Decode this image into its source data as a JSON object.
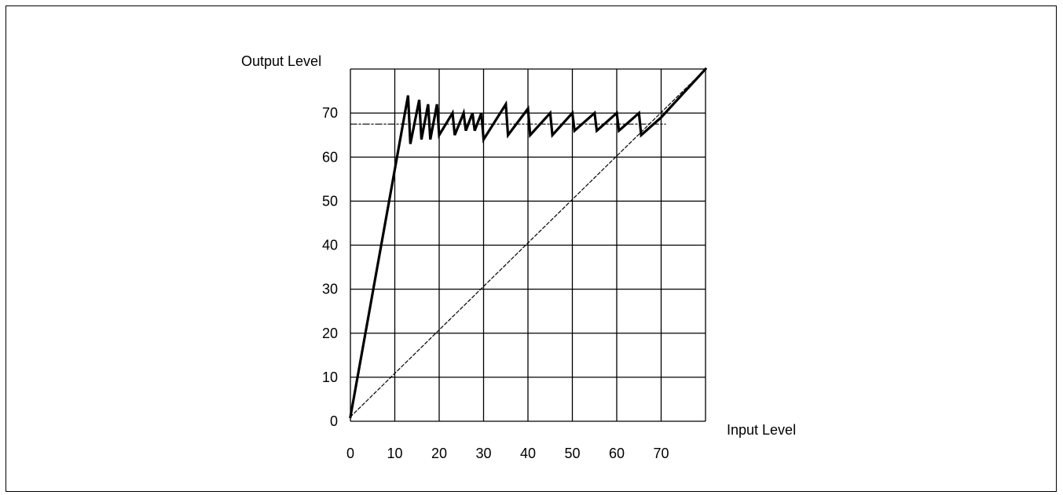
{
  "chart_data": {
    "type": "line",
    "xlabel": "Input Level",
    "ylabel": "Output Level",
    "xlim": [
      0,
      80
    ],
    "ylim": [
      0,
      80
    ],
    "x_ticks": [
      0,
      10,
      20,
      30,
      40,
      50,
      60,
      70
    ],
    "y_ticks": [
      0,
      10,
      20,
      30,
      40,
      50,
      60,
      70
    ],
    "grid": true,
    "line_color": "#000000",
    "series": [
      {
        "style": "solid-thick",
        "points": [
          [
            0,
            1
          ],
          [
            13,
            74
          ],
          [
            13.5,
            63
          ],
          [
            15.5,
            73
          ],
          [
            16,
            64
          ],
          [
            17.5,
            72
          ],
          [
            18,
            64
          ],
          [
            19.5,
            72
          ],
          [
            20,
            65
          ],
          [
            23,
            70
          ],
          [
            23.5,
            65
          ],
          [
            25.5,
            70
          ],
          [
            26,
            66
          ],
          [
            27.5,
            70
          ],
          [
            28,
            66
          ],
          [
            29.5,
            70
          ],
          [
            30,
            64
          ],
          [
            35,
            72
          ],
          [
            35.5,
            65
          ],
          [
            40,
            71
          ],
          [
            40.5,
            65
          ],
          [
            45,
            70
          ],
          [
            45.5,
            65
          ],
          [
            50,
            70
          ],
          [
            50.5,
            66
          ],
          [
            55,
            70
          ],
          [
            55.5,
            66
          ],
          [
            60,
            70
          ],
          [
            60.5,
            66
          ],
          [
            65,
            70
          ],
          [
            65.5,
            65
          ],
          [
            70,
            69
          ],
          [
            80,
            80
          ]
        ]
      },
      {
        "style": "dashed",
        "points": [
          [
            0,
            1
          ],
          [
            80,
            80
          ]
        ]
      },
      {
        "style": "dash-dot",
        "points": [
          [
            0,
            67.5
          ],
          [
            71,
            67.5
          ]
        ]
      }
    ]
  }
}
